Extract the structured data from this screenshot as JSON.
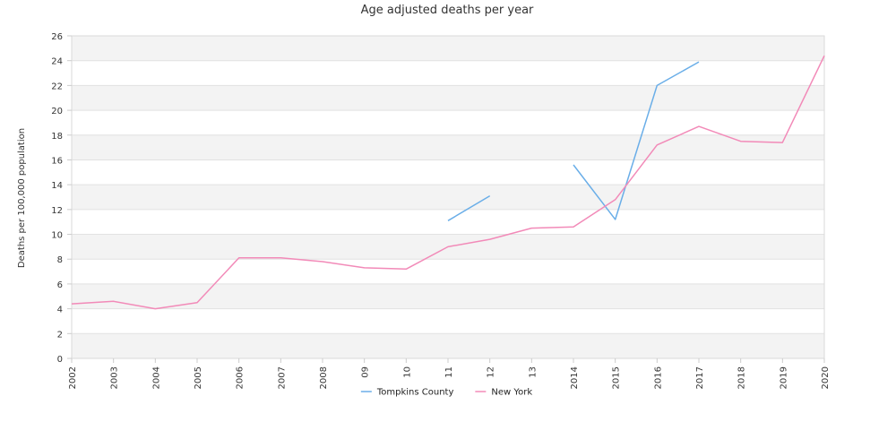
{
  "chart_data": {
    "type": "line",
    "title": "Age adjusted deaths per year",
    "xlabel": "",
    "ylabel": "Deaths per 100,000 population",
    "categories": [
      "2002",
      "2003",
      "2004",
      "2005",
      "2006",
      "2007",
      "2008",
      "09",
      "10",
      "11",
      "12",
      "13",
      "2014",
      "2015",
      "2016",
      "2017",
      "2018",
      "2019",
      "2020"
    ],
    "ylim": [
      0,
      26
    ],
    "yticks": [
      0,
      2,
      4,
      6,
      8,
      10,
      12,
      14,
      16,
      18,
      20,
      22,
      24,
      26
    ],
    "grid": "alternating horizontal bands",
    "legend_position": "bottom",
    "series": [
      {
        "name": "Tompkins County",
        "color": "#6aaee8",
        "values": [
          null,
          null,
          null,
          null,
          null,
          null,
          null,
          null,
          null,
          11.1,
          13.1,
          null,
          15.6,
          11.2,
          22.0,
          23.9,
          null,
          null,
          null
        ]
      },
      {
        "name": "New York",
        "color": "#f28ab8",
        "values": [
          4.4,
          4.6,
          4.0,
          4.5,
          8.1,
          8.1,
          7.8,
          7.3,
          7.2,
          9.0,
          9.6,
          10.5,
          10.6,
          12.8,
          17.2,
          18.7,
          17.5,
          17.4,
          24.4
        ]
      }
    ]
  }
}
